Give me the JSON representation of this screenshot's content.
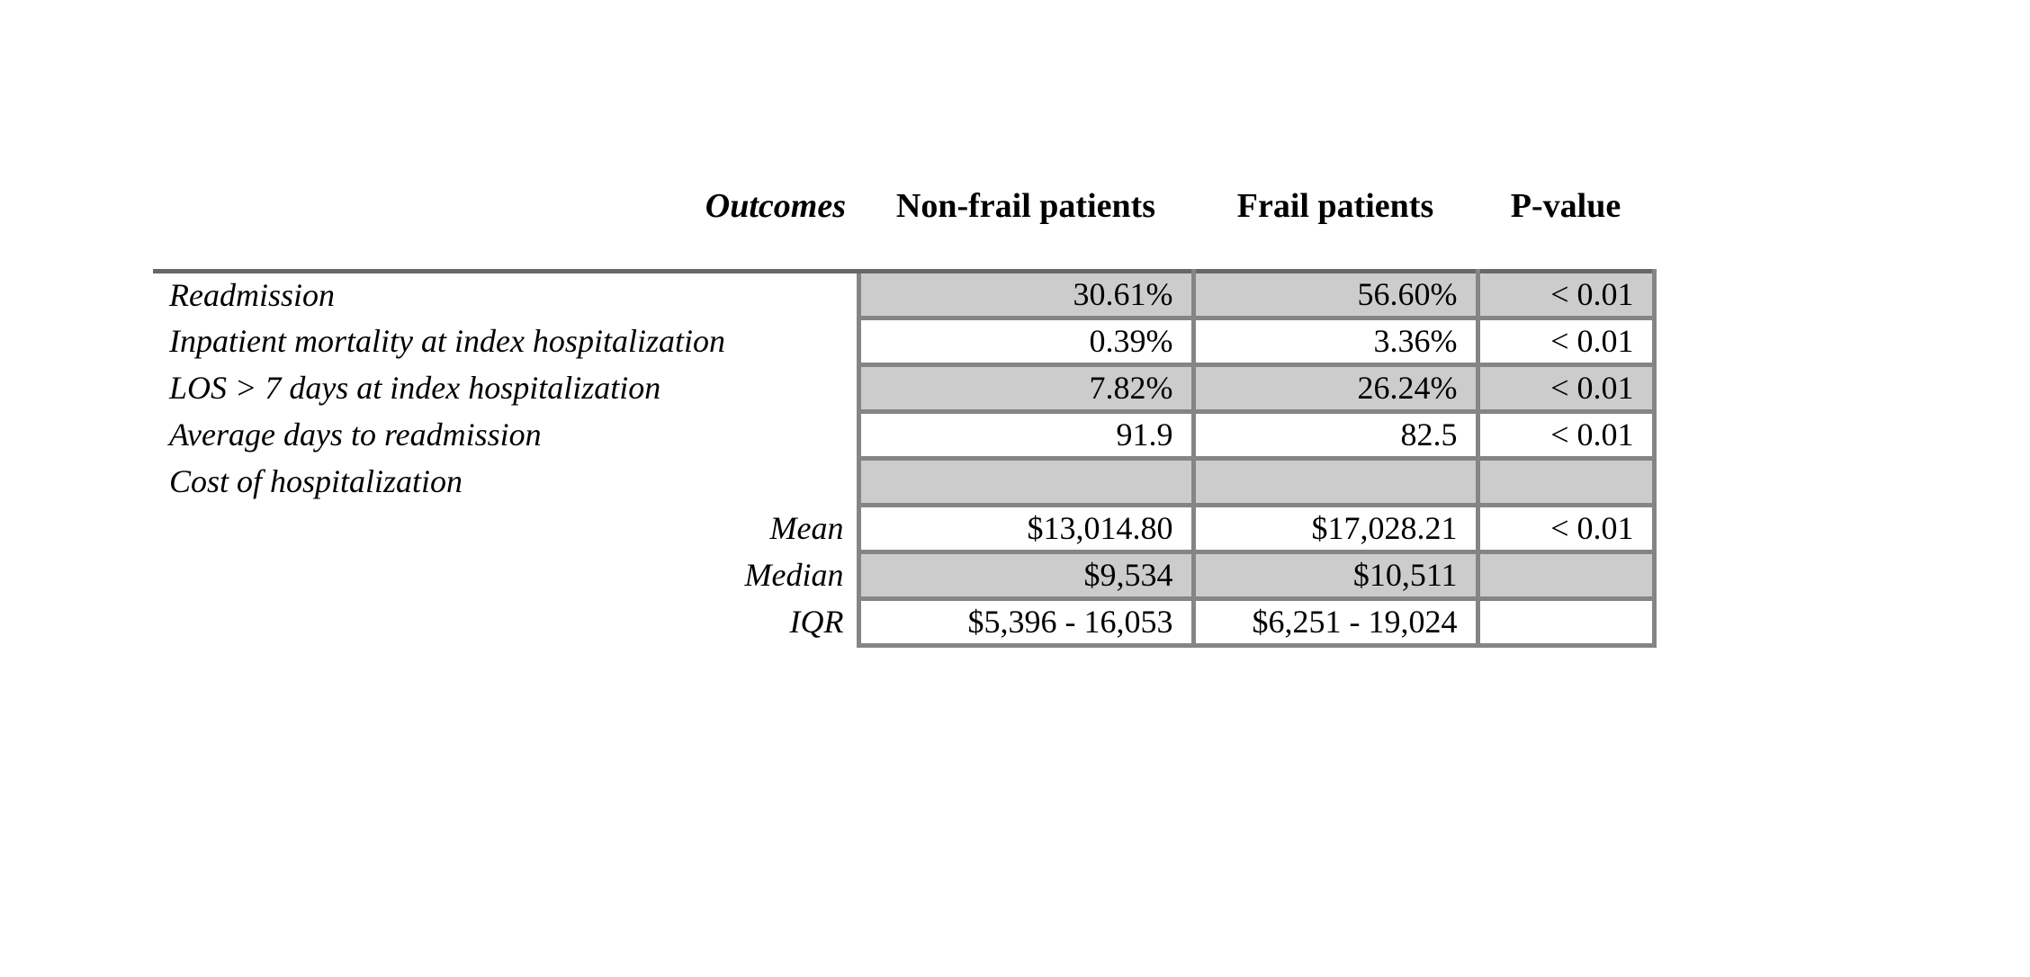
{
  "table": {
    "header": [
      "Outcomes",
      "Non-frail patients",
      "Frail patients",
      "P-value"
    ],
    "rows": [
      {
        "label": "Readmission",
        "values": [
          "30.61%",
          "56.60%",
          "< 0.01"
        ]
      },
      {
        "label": "Inpatient mortality at index hospitalization",
        "values": [
          "0.39%",
          "3.36%",
          "< 0.01"
        ]
      },
      {
        "label": "LOS > 7 days at index hospitalization",
        "values": [
          "7.82%",
          "26.24%",
          "< 0.01"
        ]
      },
      {
        "label": "Average days to readmission",
        "values": [
          "91.9",
          "82.5",
          "< 0.01"
        ]
      },
      {
        "label": "Cost of hospitalization",
        "values": [
          "",
          "",
          ""
        ]
      },
      {
        "label": "Mean",
        "values": [
          "$13,014.80",
          "$17,028.21",
          "< 0.01"
        ]
      },
      {
        "label": "Median",
        "values": [
          "$9,534",
          "$10,511",
          ""
        ]
      },
      {
        "label": "IQR",
        "values": [
          "$5,396 - 16,053",
          "$6,251 - 19,024",
          ""
        ]
      }
    ]
  },
  "colors": {
    "shaded_row": "#cccccc",
    "cell_border": "#858585",
    "top_rule": "#676767",
    "text": "#000000",
    "page_background": "#ffffff"
  }
}
